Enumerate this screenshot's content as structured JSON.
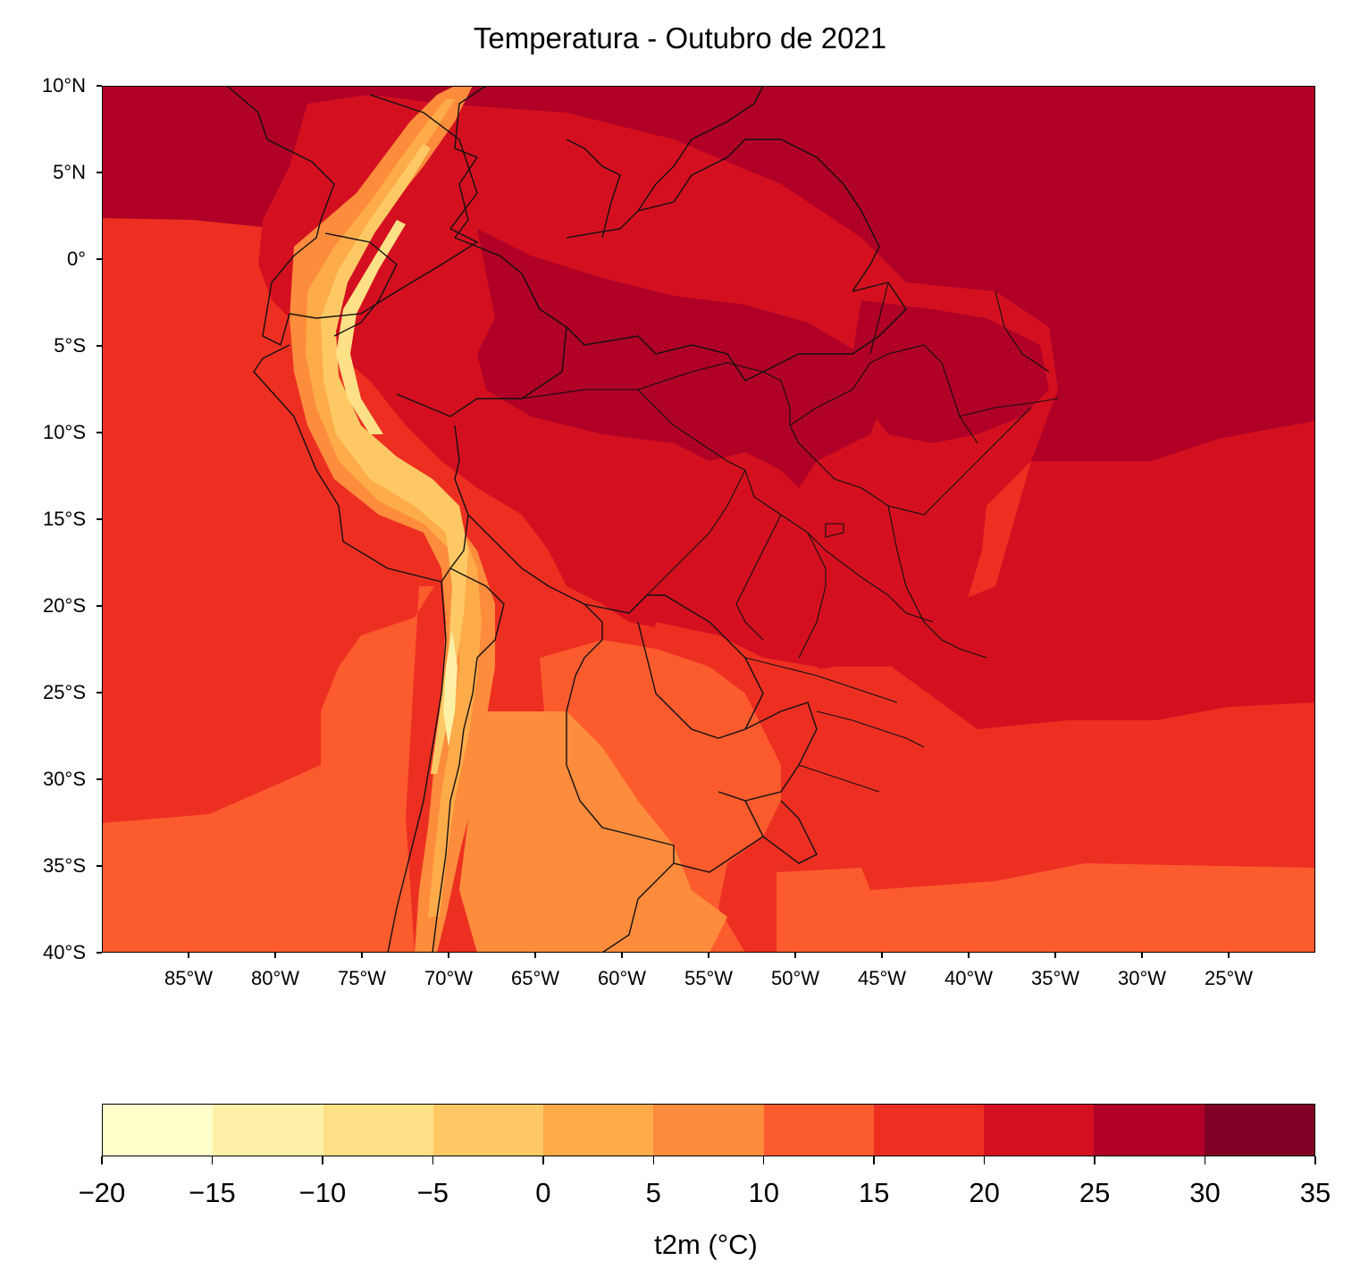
{
  "title": "Temperatura - Outubro de 2021",
  "map": {
    "lat_range": [
      -40,
      10
    ],
    "lon_range": [
      -90,
      -20
    ],
    "lat_ticks": [
      {
        "value": 10,
        "label": "10°N"
      },
      {
        "value": 5,
        "label": "5°N"
      },
      {
        "value": 0,
        "label": "0°"
      },
      {
        "value": -5,
        "label": "5°S"
      },
      {
        "value": -10,
        "label": "10°S"
      },
      {
        "value": -15,
        "label": "15°S"
      },
      {
        "value": -20,
        "label": "20°S"
      },
      {
        "value": -25,
        "label": "25°S"
      },
      {
        "value": -30,
        "label": "30°S"
      },
      {
        "value": -35,
        "label": "35°S"
      },
      {
        "value": -40,
        "label": "40°S"
      }
    ],
    "lon_ticks": [
      {
        "value": -85,
        "label": "85°W"
      },
      {
        "value": -80,
        "label": "80°W"
      },
      {
        "value": -75,
        "label": "75°W"
      },
      {
        "value": -70,
        "label": "70°W"
      },
      {
        "value": -65,
        "label": "65°W"
      },
      {
        "value": -60,
        "label": "60°W"
      },
      {
        "value": -55,
        "label": "55°W"
      },
      {
        "value": -50,
        "label": "50°W"
      },
      {
        "value": -45,
        "label": "45°W"
      },
      {
        "value": -40,
        "label": "40°W"
      },
      {
        "value": -35,
        "label": "35°W"
      },
      {
        "value": -30,
        "label": "30°W"
      },
      {
        "value": -25,
        "label": "25°W"
      }
    ],
    "colors": {
      "lt_minus15": "#ffffcc",
      "minus15_minus10": "#fff0a8",
      "minus10_minus5": "#fee087",
      "minus5_0": "#fec965",
      "0_5": "#feab4a",
      "5_10": "#fd8c3c",
      "10_15": "#fc5b2e",
      "15_20": "#ed2f22",
      "20_25": "#d41020",
      "25_30": "#b00026",
      "gt30": "#800026"
    }
  },
  "colorbar": {
    "label": "t2m (°C)",
    "levels": [
      -20,
      -15,
      -10,
      -5,
      0,
      5,
      10,
      15,
      20,
      25,
      30,
      35
    ],
    "tick_labels": [
      "−20",
      "−15",
      "−10",
      "−5",
      "0",
      "5",
      "10",
      "15",
      "20",
      "25",
      "30",
      "35"
    ],
    "segment_colors": [
      "#ffffcc",
      "#fff0a8",
      "#fee087",
      "#fec965",
      "#feab4a",
      "#fd8c3c",
      "#fc5b2e",
      "#ed2f22",
      "#d41020",
      "#b00026",
      "#800026"
    ]
  }
}
